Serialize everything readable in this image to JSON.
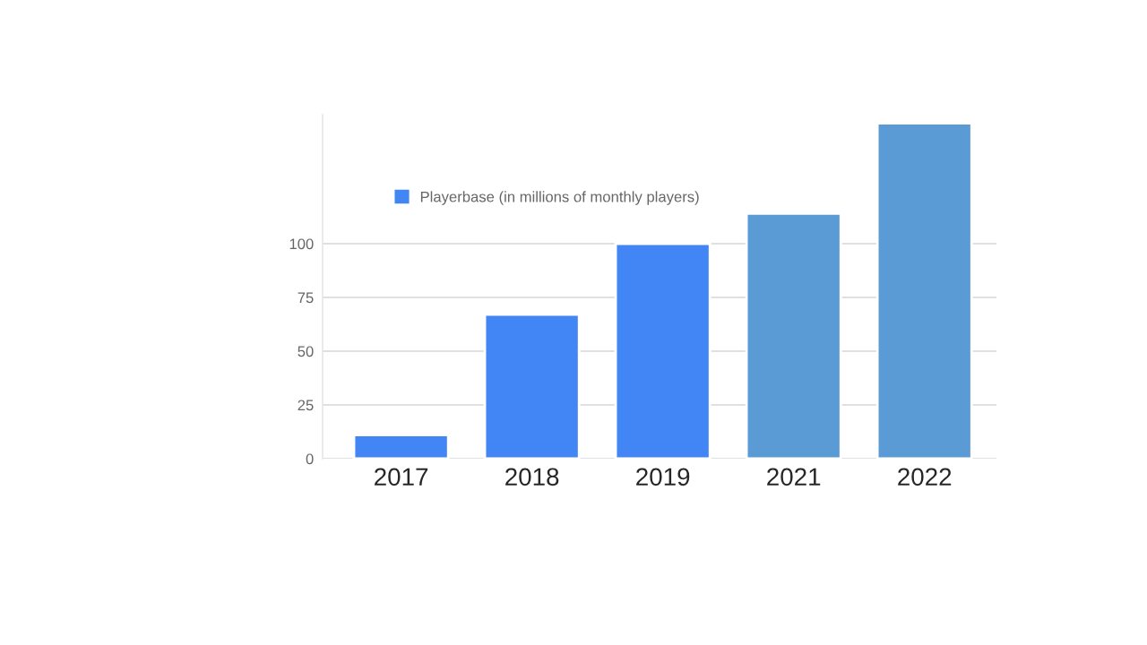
{
  "chart_data": {
    "type": "bar",
    "categories": [
      "2017",
      "2018",
      "2019",
      "2021",
      "2022"
    ],
    "series": [
      {
        "name": "Playerbase (in millions of monthly players)",
        "color": "#4285f4",
        "colors": [
          "#4285f4",
          "#4285f4",
          "#4285f4",
          "#5b9bd5",
          "#5b9bd5"
        ],
        "values": [
          11,
          67,
          100,
          114,
          156
        ]
      }
    ],
    "ylim": [
      0,
      160
    ],
    "yticks": [
      0,
      25,
      50,
      75,
      100
    ],
    "grid": "y",
    "legend": "top left"
  }
}
